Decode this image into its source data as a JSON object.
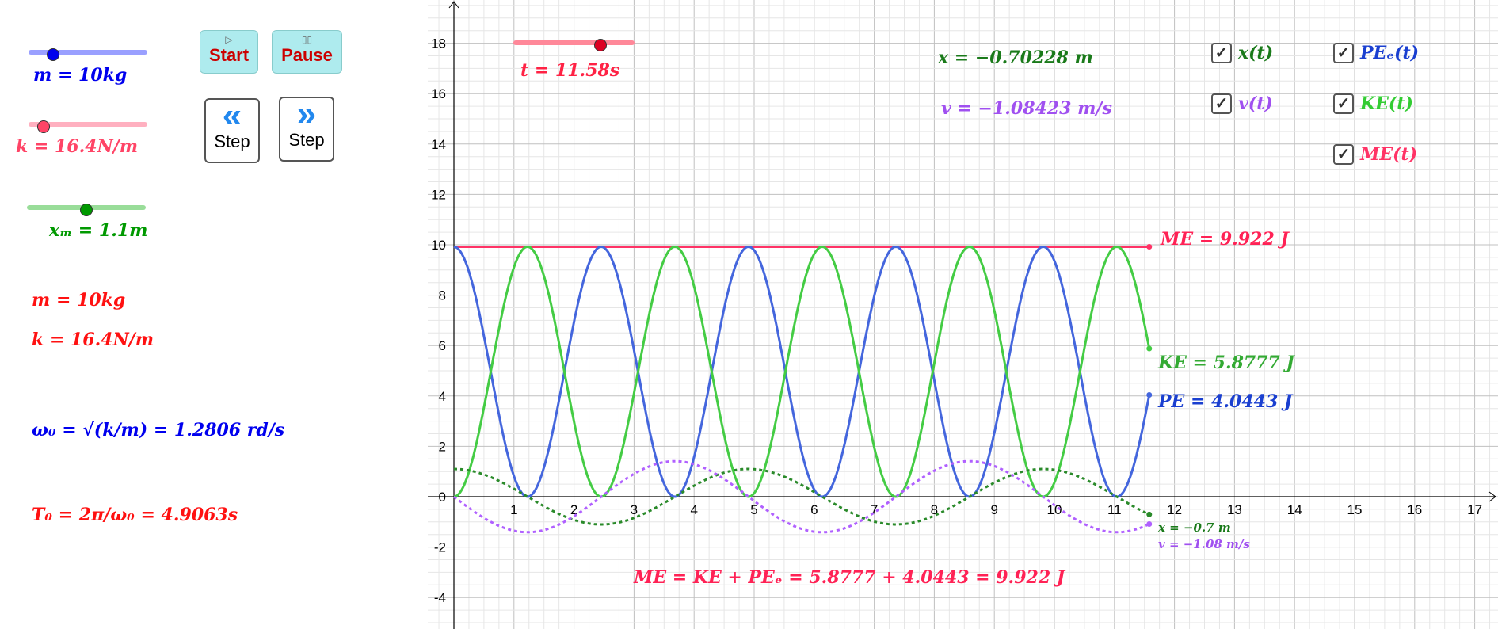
{
  "controls": {
    "m_slider": {
      "label": "m = 10kg",
      "value": 10,
      "fraction": 0.2,
      "color": "#0000ff"
    },
    "k_slider": {
      "label": "k = 16.4N/m",
      "value": 16.4,
      "fraction": 0.12,
      "color": "#ff4466"
    },
    "xm_slider": {
      "label": "xₘ = 1.1m",
      "value": 1.1,
      "fraction": 0.5,
      "color": "#009900"
    },
    "t_slider": {
      "label": "t = 11.58s",
      "value": 11.58,
      "fraction": 0.72,
      "color": "#ff4466"
    },
    "start": {
      "icon": "▷",
      "label": "Start"
    },
    "pause": {
      "icon": "▯▯",
      "label": "Pause"
    },
    "step_back": {
      "icon": "«",
      "label": "Step"
    },
    "step_fwd": {
      "icon": "»",
      "label": "Step"
    }
  },
  "info": {
    "m": "m = 10kg",
    "k": "k = 16.4N/m",
    "omega": "ω₀ = √(k/m) = 1.2806 rd/s",
    "period": "T₀ = 2π/ω₀ = 4.9063s",
    "x_value": "x = −0.70228 m",
    "v_value": "v = −1.08423 m/s",
    "me_label": "ME = 9.922 J",
    "ke_label": "KE = 5.8777 J",
    "pe_label": "PE = 4.0443 J",
    "x_point": "x = −0.7 m",
    "v_point": "v = −1.08 m/s",
    "energy_eq": "ME = KE + PEₑ = 5.8777 + 4.0443 = 9.922 J"
  },
  "checkboxes": [
    {
      "label": "x(t)",
      "checked": true,
      "color": "#1a7a1a"
    },
    {
      "label": "v(t)",
      "checked": true,
      "color": "#a050f0"
    },
    {
      "label": "PEₑ(t)",
      "checked": true,
      "color": "#1a3fd0"
    },
    {
      "label": "KE(t)",
      "checked": true,
      "color": "#33cc33"
    },
    {
      "label": "ME(t)",
      "checked": true,
      "color": "#ff3366"
    }
  ],
  "chart_data": {
    "type": "line",
    "xlim": [
      -0.3,
      17.4
    ],
    "ylim": [
      -5,
      19.7
    ],
    "x_ticks": [
      1,
      2,
      3,
      4,
      5,
      6,
      7,
      8,
      9,
      10,
      11,
      12,
      13,
      14,
      15,
      16,
      17
    ],
    "y_ticks": [
      -4,
      -2,
      2,
      4,
      6,
      8,
      10,
      12,
      14,
      16,
      18
    ],
    "params": {
      "m": 10,
      "k": 16.4,
      "xm": 1.1,
      "omega": 1.2806,
      "t_end": 11.58
    },
    "series": [
      {
        "name": "ME(t)",
        "formula": "9.922",
        "color": "#ff3366",
        "dash": false
      },
      {
        "name": "PE(t)",
        "formula": "9.922*cos^2(1.2806 t)",
        "color": "#4466dd",
        "dash": false
      },
      {
        "name": "KE(t)",
        "formula": "9.922*sin^2(1.2806 t)",
        "color": "#44cc44",
        "dash": false
      },
      {
        "name": "x(t)",
        "formula": "1.1*cos(1.2806 t)",
        "color": "#2a8a2a",
        "dash": true
      },
      {
        "name": "v(t)",
        "formula": "-1.4087*sin(1.2806 t)",
        "color": "#b060ff",
        "dash": true
      }
    ]
  }
}
